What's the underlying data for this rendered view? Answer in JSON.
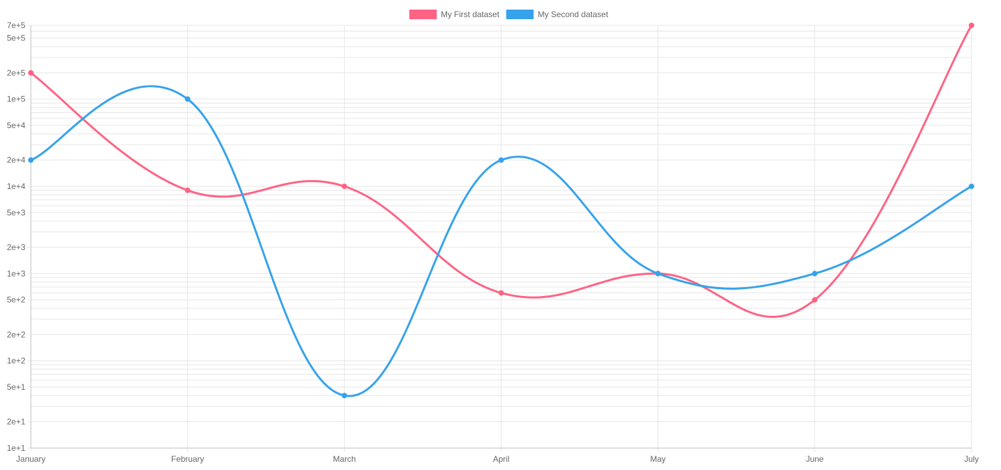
{
  "chart_data": {
    "type": "line",
    "scale": "logarithmic",
    "categories": [
      "January",
      "February",
      "March",
      "April",
      "May",
      "June",
      "July"
    ],
    "series": [
      {
        "name": "My First dataset",
        "color": "#ff6384",
        "values": [
          200000,
          9000,
          10000,
          600,
          1000,
          500,
          700000
        ]
      },
      {
        "name": "My Second dataset",
        "color": "#36a2eb",
        "values": [
          20000,
          100000,
          40,
          20000,
          1000,
          1000,
          10000
        ]
      }
    ],
    "ylim": [
      10,
      700000
    ],
    "y_tick_values": [
      10,
      20,
      50,
      100,
      200,
      500,
      1000,
      2000,
      5000,
      10000,
      20000,
      50000,
      100000,
      200000,
      500000,
      700000
    ],
    "y_tick_labels": [
      "1e+1",
      "2e+1",
      "5e+1",
      "1e+2",
      "2e+2",
      "5e+2",
      "1e+3",
      "2e+3",
      "5e+3",
      "1e+4",
      "2e+4",
      "5e+4",
      "1e+5",
      "2e+5",
      "5e+5",
      "7e+5"
    ],
    "grid": true,
    "legend_position": "top-center",
    "grid_color": "#e6e6e6",
    "axis_color": "#bdbdbd",
    "label_color": "#666666"
  }
}
